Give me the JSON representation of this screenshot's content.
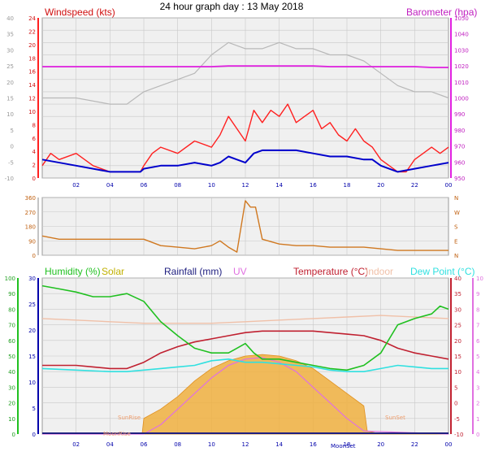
{
  "title": "24 hour graph day : 13 May 2018",
  "colors": {
    "wind": "#ff2020",
    "gust_line": "#0000cc",
    "baro": "#e020e0",
    "gray": "#b8b8b8",
    "wdir": "#d07820",
    "hum": "#20c020",
    "solar": "#f0b040",
    "rain": "#202080",
    "uv": "#e070e0",
    "temp": "#c02030",
    "indoor": "#f0c0a8",
    "dew": "#30e0e0",
    "grid": "#c8c8c8",
    "plotbg": "#f0f0f0",
    "axisblue": "#0000aa"
  },
  "x_tick_labels": [
    "02",
    "04",
    "06",
    "08",
    "10",
    "12",
    "14",
    "16",
    "18",
    "20",
    "22",
    "00"
  ],
  "chart_data": [
    {
      "type": "line",
      "title": "24 hour graph day : 13 May 2018",
      "ylabel_left": "Windspeed (kts)",
      "ylabel_right": "Barometer (hpa)",
      "yticks_left_outer": [
        "40",
        "35",
        "30",
        "25",
        "20",
        "15",
        "10",
        "5",
        "0",
        "-5",
        "-10"
      ],
      "yticks_left": [
        "24",
        "22",
        "20",
        "18",
        "16",
        "14",
        "12",
        "10",
        "8",
        "6",
        "4",
        "2",
        "0"
      ],
      "yticks_right": [
        "1050",
        "1040",
        "1030",
        "1020",
        "1010",
        "1000",
        "990",
        "980",
        "970",
        "960",
        "950"
      ],
      "ylim_left": [
        -1,
        25
      ],
      "ylim_right": [
        945,
        1050
      ],
      "xlim": [
        0,
        24
      ],
      "series": [
        {
          "x": [
            0,
            2,
            4,
            5.8,
            6,
            7,
            8,
            9,
            10,
            10.5,
            11,
            11.5,
            12,
            12.5,
            13,
            14,
            15,
            16,
            17,
            18,
            19,
            19.5,
            20,
            21,
            22,
            23,
            24
          ],
          "y": [
            2,
            1,
            0,
            0,
            0.5,
            1,
            1,
            1.5,
            1,
            1.5,
            2.5,
            2,
            1.5,
            3,
            3.5,
            3.5,
            3.5,
            3,
            2.5,
            2.5,
            2,
            2,
            1,
            0,
            0.5,
            1,
            1.5
          ]
        },
        {
          "x": [
            0,
            0.5,
            1,
            2,
            3,
            4,
            5,
            5.8,
            6,
            6.5,
            7,
            8,
            9,
            10,
            10.5,
            11,
            11.5,
            12,
            12.5,
            13,
            13.5,
            14,
            14.5,
            15,
            15.5,
            16,
            16.5,
            17,
            17.5,
            18,
            18.5,
            19,
            19.5,
            20,
            21,
            21.5,
            22,
            22.5,
            23,
            23.5,
            24
          ],
          "y": [
            1,
            3,
            2,
            3,
            1,
            0,
            0,
            0,
            1,
            3,
            4,
            3,
            5,
            4,
            6,
            9,
            7,
            5,
            10,
            8,
            10,
            9,
            11,
            8,
            9,
            10,
            7,
            8,
            6,
            5,
            7,
            5,
            4,
            2,
            0,
            0,
            2,
            3,
            4,
            3,
            4
          ]
        },
        {
          "x": [
            0,
            1,
            2,
            3,
            4,
            5,
            6,
            7,
            8,
            9,
            10,
            11,
            12,
            13,
            14,
            15,
            16,
            17,
            18,
            19,
            20,
            21,
            22,
            23,
            24
          ],
          "y": [
            1018,
            1018,
            1018,
            1018,
            1018,
            1018,
            1018,
            1018,
            1018,
            1018,
            1018,
            1018.5,
            1018.5,
            1018.5,
            1018.5,
            1018.5,
            1018.5,
            1018,
            1018,
            1018,
            1018,
            1018,
            1018,
            1017.5,
            1017.5
          ]
        },
        {
          "x": [
            0,
            2,
            4,
            5,
            6,
            7,
            8,
            9,
            10,
            11,
            12,
            13,
            14,
            15,
            16,
            17,
            18,
            19,
            20,
            21,
            22,
            23,
            24
          ],
          "y": [
            12,
            12,
            11,
            11,
            13,
            14,
            15,
            16,
            19,
            21,
            20,
            20,
            21,
            20,
            20,
            19,
            19,
            18,
            16,
            14,
            13,
            13,
            12
          ]
        }
      ]
    },
    {
      "type": "line",
      "yticks_left": [
        "360",
        "270",
        "180",
        "90",
        "0"
      ],
      "yticks_right": [
        "N",
        "W",
        "S",
        "E",
        "N"
      ],
      "ylim": [
        0,
        360
      ],
      "xlim": [
        0,
        24
      ],
      "series": [
        {
          "x": [
            0,
            1,
            2,
            3,
            4,
            5,
            6,
            7,
            8,
            9,
            10,
            10.5,
            11,
            11.5,
            12,
            12.3,
            12.6,
            13,
            14,
            15,
            16,
            17,
            18,
            19,
            20,
            21,
            22,
            23,
            24
          ],
          "y": [
            120,
            100,
            100,
            100,
            100,
            100,
            100,
            60,
            50,
            40,
            60,
            90,
            50,
            20,
            340,
            300,
            300,
            100,
            70,
            60,
            60,
            50,
            50,
            50,
            40,
            30,
            30,
            30,
            30
          ]
        }
      ]
    },
    {
      "type": "line",
      "legend": [
        "Humidity (%)",
        "Solar",
        "Rainfall (mm)",
        "UV",
        "Temperature (°C)",
        "Indoor",
        "Dew Point (°C)"
      ],
      "yticks_hum": [
        "100",
        "90",
        "80",
        "70",
        "60",
        "50",
        "40",
        "30",
        "20",
        "10",
        "0"
      ],
      "yticks_rain": [
        "30",
        "25",
        "20",
        "15",
        "10",
        "5",
        "0"
      ],
      "yticks_temp": [
        "40",
        "35",
        "30",
        "25",
        "20",
        "15",
        "10",
        "5",
        "0",
        "-5",
        "-10"
      ],
      "yticks_uv": [
        "10",
        "9",
        "8",
        "7",
        "6",
        "5",
        "4",
        "3",
        "2",
        "1",
        "0"
      ],
      "ylim_temp": [
        -10,
        40
      ],
      "xlim": [
        0,
        24
      ],
      "annotations": [
        "SunRise",
        "MoonRise",
        "MoonSet",
        "SunSet"
      ],
      "series": [
        {
          "name": "Humidity (%)",
          "x": [
            0,
            1,
            2,
            3,
            4,
            5,
            6,
            7,
            8,
            9,
            10,
            11,
            11.5,
            12,
            12.5,
            13,
            14,
            15,
            16,
            17,
            18,
            19,
            20,
            21,
            22,
            23,
            23.5,
            24
          ],
          "y": [
            95,
            93,
            91,
            88,
            88,
            90,
            85,
            72,
            63,
            55,
            52,
            52,
            55,
            58,
            52,
            48,
            48,
            46,
            44,
            42,
            41,
            44,
            52,
            70,
            74,
            77,
            82,
            80
          ]
        },
        {
          "name": "Temperature (°C)",
          "x": [
            0,
            1,
            2,
            3,
            4,
            5,
            6,
            7,
            8,
            9,
            10,
            11,
            12,
            13,
            14,
            15,
            16,
            17,
            18,
            19,
            20,
            21,
            22,
            23,
            24
          ],
          "y": [
            12,
            12,
            12,
            11.5,
            11,
            11,
            13,
            16,
            18,
            19.5,
            20.5,
            21.5,
            22.5,
            23,
            23,
            23,
            23,
            22.5,
            22,
            21.5,
            20,
            17.5,
            16,
            15,
            14
          ]
        },
        {
          "name": "Dew Point (°C)",
          "x": [
            0,
            2,
            4,
            5,
            6,
            7,
            8,
            9,
            10,
            11,
            12,
            13,
            14,
            15,
            16,
            17,
            18,
            19,
            20,
            21,
            22,
            23,
            24
          ],
          "y": [
            11,
            10.5,
            10,
            10,
            10.5,
            11,
            11.5,
            12,
            13.5,
            14,
            13,
            13,
            12.5,
            12,
            11.5,
            10.5,
            10,
            10,
            11,
            12,
            11.5,
            11,
            11
          ]
        },
        {
          "name": "Indoor",
          "x": [
            0,
            2,
            4,
            6,
            8,
            10,
            12,
            14,
            16,
            18,
            20,
            22,
            24
          ],
          "y": [
            27,
            26.5,
            26,
            25.5,
            25.5,
            25.5,
            26,
            26.5,
            27,
            27.5,
            28,
            27.5,
            27
          ]
        },
        {
          "name": "Solar",
          "x": [
            0,
            5.9,
            6,
            7,
            8,
            9,
            10,
            11,
            12,
            13,
            14,
            15,
            16,
            17,
            18,
            19,
            19.2,
            20,
            24
          ],
          "y": [
            -10,
            -10,
            -5,
            -2,
            2,
            7,
            11,
            13.5,
            15,
            15.5,
            15,
            13.5,
            11,
            7,
            3,
            -1,
            -9,
            -10,
            -10
          ]
        },
        {
          "name": "UV",
          "x": [
            0,
            6,
            7,
            8,
            9,
            10,
            11,
            12,
            13,
            14,
            15,
            16,
            17,
            18,
            19,
            24
          ],
          "y": [
            -10,
            -10,
            -7,
            -2,
            3,
            8,
            12,
            14,
            14.5,
            13,
            10,
            5,
            0,
            -5,
            -9,
            -10
          ]
        }
      ]
    }
  ]
}
